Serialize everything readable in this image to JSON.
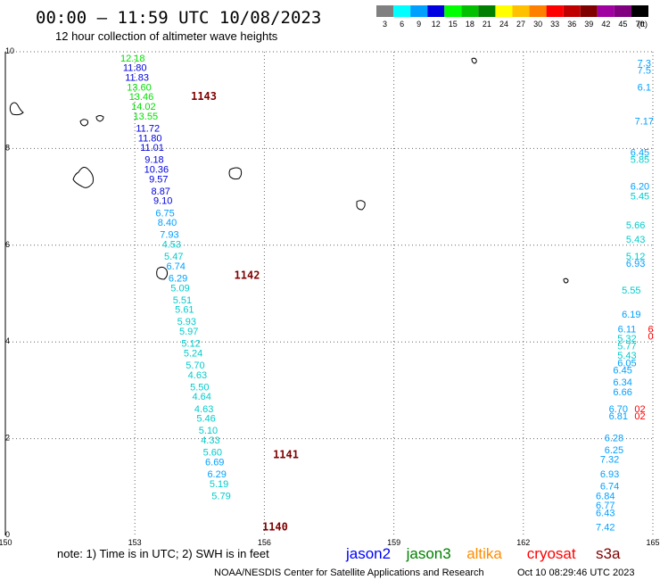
{
  "header": {
    "title": "00:00 – 11:59 UTC 10/08/2023",
    "subtitle": "12 hour collection of altimeter wave heights"
  },
  "colorbar": {
    "unit": "(ft)",
    "bins": [
      {
        "label": "3",
        "color": "#808080"
      },
      {
        "label": "6",
        "color": "#00ffff"
      },
      {
        "label": "9",
        "color": "#00a0ff"
      },
      {
        "label": "12",
        "color": "#0000e0"
      },
      {
        "label": "15",
        "color": "#00ff00"
      },
      {
        "label": "18",
        "color": "#00c000"
      },
      {
        "label": "21",
        "color": "#008000"
      },
      {
        "label": "24",
        "color": "#ffff00"
      },
      {
        "label": "27",
        "color": "#ffc000"
      },
      {
        "label": "30",
        "color": "#ff8000"
      },
      {
        "label": "33",
        "color": "#ff0000"
      },
      {
        "label": "36",
        "color": "#c00000"
      },
      {
        "label": "39",
        "color": "#800000"
      },
      {
        "label": "42",
        "color": "#a000a0"
      },
      {
        "label": "45",
        "color": "#800080"
      },
      {
        "label": "70",
        "color": "#000000"
      }
    ]
  },
  "footer": {
    "note": "note:  1) Time is in UTC;  2) SWH is in feet",
    "credit": "NOAA/NESDIS Center for Satellite Applications and Research",
    "timestamp": "Oct 10 08:29:46 UTC 2023",
    "satellites": [
      {
        "name": "jason2",
        "color": "#0000ff"
      },
      {
        "name": "jason3",
        "color": "#008000"
      },
      {
        "name": "altika",
        "color": "#ff8c00"
      },
      {
        "name": "cryosat",
        "color": "#ff0000"
      },
      {
        "name": "s3a",
        "color": "#800000"
      }
    ]
  },
  "chart_data": {
    "type": "scatter",
    "xlim": [
      150,
      165
    ],
    "ylim": [
      0,
      10
    ],
    "x_ticks": [
      "150",
      "153",
      "156",
      "159",
      "162",
      "165"
    ],
    "y_ticks": [
      "0",
      "2",
      "4",
      "6",
      "8",
      "10"
    ],
    "grid": true,
    "passes": [
      {
        "label": "1143",
        "x": 154.3,
        "y": 9.0
      },
      {
        "label": "1142",
        "x": 155.3,
        "y": 5.3
      },
      {
        "label": "1141",
        "x": 156.2,
        "y": 1.6
      },
      {
        "label": "1140",
        "x": 155.95,
        "y": 0.1
      }
    ],
    "points": [
      {
        "x": 152.95,
        "y": 9.8,
        "v": "12.18",
        "c": "#00e000"
      },
      {
        "x": 153.0,
        "y": 9.6,
        "v": "11.80",
        "c": "#0000e0"
      },
      {
        "x": 153.05,
        "y": 9.4,
        "v": "11.83",
        "c": "#0000e0"
      },
      {
        "x": 153.1,
        "y": 9.2,
        "v": "13.60",
        "c": "#00e000"
      },
      {
        "x": 153.15,
        "y": 9.0,
        "v": "13.46",
        "c": "#00e000"
      },
      {
        "x": 153.2,
        "y": 8.8,
        "v": "14.02",
        "c": "#00e000"
      },
      {
        "x": 153.25,
        "y": 8.6,
        "v": "13.55",
        "c": "#00e000"
      },
      {
        "x": 153.3,
        "y": 8.35,
        "v": "11.72",
        "c": "#0000e0"
      },
      {
        "x": 153.35,
        "y": 8.15,
        "v": "11.80",
        "c": "#0000e0"
      },
      {
        "x": 153.4,
        "y": 7.95,
        "v": "11.01",
        "c": "#0000e0"
      },
      {
        "x": 153.45,
        "y": 7.7,
        "v": "9.18",
        "c": "#0000e0"
      },
      {
        "x": 153.5,
        "y": 7.5,
        "v": "10.36",
        "c": "#0000e0"
      },
      {
        "x": 153.55,
        "y": 7.3,
        "v": "9.57",
        "c": "#0000e0"
      },
      {
        "x": 153.6,
        "y": 7.05,
        "v": "8.87",
        "c": "#0000e0"
      },
      {
        "x": 153.65,
        "y": 6.85,
        "v": "9.10",
        "c": "#0000e0"
      },
      {
        "x": 153.7,
        "y": 6.6,
        "v": "6.75",
        "c": "#00a0ff"
      },
      {
        "x": 153.75,
        "y": 6.4,
        "v": "8.40",
        "c": "#00a0ff"
      },
      {
        "x": 153.8,
        "y": 6.15,
        "v": "7.93",
        "c": "#00a0ff"
      },
      {
        "x": 153.85,
        "y": 5.95,
        "v": "4.53",
        "c": "#00cccc"
      },
      {
        "x": 153.9,
        "y": 5.7,
        "v": "5.47",
        "c": "#00cccc"
      },
      {
        "x": 153.95,
        "y": 5.5,
        "v": "6.74",
        "c": "#00a0ff"
      },
      {
        "x": 154.0,
        "y": 5.25,
        "v": "6.29",
        "c": "#00a0ff"
      },
      {
        "x": 154.05,
        "y": 5.05,
        "v": "5.09",
        "c": "#00cccc"
      },
      {
        "x": 154.1,
        "y": 4.8,
        "v": "5.51",
        "c": "#00cccc"
      },
      {
        "x": 154.15,
        "y": 4.6,
        "v": "5.61",
        "c": "#00cccc"
      },
      {
        "x": 154.2,
        "y": 4.35,
        "v": "5.93",
        "c": "#00cccc"
      },
      {
        "x": 154.25,
        "y": 4.15,
        "v": "5.97",
        "c": "#00cccc"
      },
      {
        "x": 154.3,
        "y": 3.9,
        "v": "5.12",
        "c": "#00cccc"
      },
      {
        "x": 154.35,
        "y": 3.7,
        "v": "5.24",
        "c": "#00cccc"
      },
      {
        "x": 154.4,
        "y": 3.45,
        "v": "5.70",
        "c": "#00cccc"
      },
      {
        "x": 154.45,
        "y": 3.25,
        "v": "4.63",
        "c": "#00cccc"
      },
      {
        "x": 154.5,
        "y": 3.0,
        "v": "5.50",
        "c": "#00cccc"
      },
      {
        "x": 154.55,
        "y": 2.8,
        "v": "4.64",
        "c": "#00cccc"
      },
      {
        "x": 154.6,
        "y": 2.55,
        "v": "4.63",
        "c": "#00cccc"
      },
      {
        "x": 154.65,
        "y": 2.35,
        "v": "5.46",
        "c": "#00cccc"
      },
      {
        "x": 154.7,
        "y": 2.1,
        "v": "5.10",
        "c": "#00cccc"
      },
      {
        "x": 154.75,
        "y": 1.9,
        "v": "4.33",
        "c": "#00cccc"
      },
      {
        "x": 154.8,
        "y": 1.65,
        "v": "5.60",
        "c": "#00cccc"
      },
      {
        "x": 154.85,
        "y": 1.45,
        "v": "6.69",
        "c": "#00a0ff"
      },
      {
        "x": 154.9,
        "y": 1.2,
        "v": "6.29",
        "c": "#00a0ff"
      },
      {
        "x": 154.95,
        "y": 1.0,
        "v": "5.19",
        "c": "#00cccc"
      },
      {
        "x": 155.0,
        "y": 0.75,
        "v": "5.79",
        "c": "#00cccc"
      },
      {
        "x": 164.8,
        "y": 9.7,
        "v": "7.3",
        "c": "#00a0ff"
      },
      {
        "x": 164.8,
        "y": 9.55,
        "v": "7.5",
        "c": "#00a0ff"
      },
      {
        "x": 164.8,
        "y": 9.2,
        "v": "6.1",
        "c": "#00a0ff"
      },
      {
        "x": 164.8,
        "y": 8.5,
        "v": "7.17",
        "c": "#00a0ff"
      },
      {
        "x": 164.7,
        "y": 7.85,
        "v": "6.45",
        "c": "#00a0ff"
      },
      {
        "x": 164.7,
        "y": 7.7,
        "v": "5.85",
        "c": "#00cccc"
      },
      {
        "x": 164.7,
        "y": 7.15,
        "v": "6.20",
        "c": "#00a0ff"
      },
      {
        "x": 164.7,
        "y": 6.95,
        "v": "5.45",
        "c": "#00cccc"
      },
      {
        "x": 164.6,
        "y": 6.35,
        "v": "5.66",
        "c": "#00cccc"
      },
      {
        "x": 164.6,
        "y": 6.05,
        "v": "5.43",
        "c": "#00cccc"
      },
      {
        "x": 164.6,
        "y": 5.7,
        "v": "5.12",
        "c": "#00cccc"
      },
      {
        "x": 164.6,
        "y": 5.55,
        "v": "6.93",
        "c": "#00a0ff"
      },
      {
        "x": 164.5,
        "y": 5.0,
        "v": "5.55",
        "c": "#00cccc"
      },
      {
        "x": 164.5,
        "y": 4.5,
        "v": "6.19",
        "c": "#00a0ff"
      },
      {
        "x": 164.4,
        "y": 4.2,
        "v": "6.11",
        "c": "#00a0ff"
      },
      {
        "x": 164.4,
        "y": 4.0,
        "v": "5.32",
        "c": "#00cccc"
      },
      {
        "x": 164.4,
        "y": 3.85,
        "v": "5.77",
        "c": "#00cccc"
      },
      {
        "x": 164.4,
        "y": 3.65,
        "v": "5.43",
        "c": "#00cccc"
      },
      {
        "x": 164.4,
        "y": 3.5,
        "v": "6.05",
        "c": "#00a0ff"
      },
      {
        "x": 164.3,
        "y": 3.35,
        "v": "6.45",
        "c": "#00a0ff"
      },
      {
        "x": 164.3,
        "y": 3.1,
        "v": "6.34",
        "c": "#00a0ff"
      },
      {
        "x": 164.3,
        "y": 2.9,
        "v": "6.66",
        "c": "#00a0ff"
      },
      {
        "x": 164.2,
        "y": 2.55,
        "v": "6.70",
        "c": "#00a0ff"
      },
      {
        "x": 164.2,
        "y": 2.4,
        "v": "6.81",
        "c": "#00a0ff"
      },
      {
        "x": 164.1,
        "y": 1.95,
        "v": "6.28",
        "c": "#00a0ff"
      },
      {
        "x": 164.1,
        "y": 1.7,
        "v": "6.25",
        "c": "#00a0ff"
      },
      {
        "x": 164.0,
        "y": 1.5,
        "v": "7.32",
        "c": "#00a0ff"
      },
      {
        "x": 164.0,
        "y": 1.2,
        "v": "6.93",
        "c": "#00a0ff"
      },
      {
        "x": 164.0,
        "y": 0.95,
        "v": "6.74",
        "c": "#00a0ff"
      },
      {
        "x": 163.9,
        "y": 0.75,
        "v": "6.84",
        "c": "#00a0ff"
      },
      {
        "x": 163.9,
        "y": 0.55,
        "v": "6.77",
        "c": "#00a0ff"
      },
      {
        "x": 163.9,
        "y": 0.4,
        "v": "6.43",
        "c": "#00a0ff"
      },
      {
        "x": 163.9,
        "y": 0.1,
        "v": "7.42",
        "c": "#00a0ff"
      },
      {
        "x": 164.95,
        "y": 4.2,
        "v": "6",
        "c": "#ff0000"
      },
      {
        "x": 164.95,
        "y": 4.05,
        "v": "0",
        "c": "#ff0000"
      },
      {
        "x": 164.7,
        "y": 2.55,
        "v": "02",
        "c": "#ff0000"
      },
      {
        "x": 164.7,
        "y": 2.4,
        "v": "02",
        "c": "#ff0000"
      }
    ]
  }
}
